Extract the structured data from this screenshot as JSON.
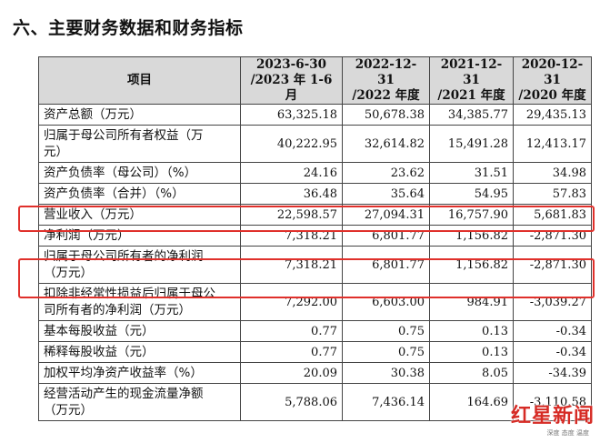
{
  "section_title": "六、主要财务数据和财务指标",
  "table": {
    "headers": [
      [
        "项目"
      ],
      [
        "2023-6-30",
        "/2023 年 1-6 月"
      ],
      [
        "2022-12-31",
        "/2022 年度"
      ],
      [
        "2021-12-31",
        "/2021 年度"
      ],
      [
        "2020-12-31",
        "/2020 年度"
      ]
    ],
    "rows": [
      {
        "label": [
          "资产总额（万元）"
        ],
        "values": [
          "63,325.18",
          "50,678.38",
          "34,385.77",
          "29,435.13"
        ]
      },
      {
        "label": [
          "归属于母公司所有者权益（万",
          "元）"
        ],
        "values": [
          "40,222.95",
          "32,614.82",
          "15,491.28",
          "12,413.17"
        ]
      },
      {
        "label": [
          "资产负债率（母公司）（%）"
        ],
        "values": [
          "24.16",
          "23.62",
          "31.51",
          "34.98"
        ]
      },
      {
        "label": [
          "资产负债率（合并）（%）"
        ],
        "values": [
          "36.48",
          "35.64",
          "54.95",
          "57.83"
        ]
      },
      {
        "label": [
          "营业收入（万元）"
        ],
        "values": [
          "22,598.57",
          "27,094.31",
          "16,757.90",
          "5,681.83"
        ],
        "highlighted": true
      },
      {
        "label": [
          "净利润（万元）"
        ],
        "values": [
          "7,318.21",
          "6,801.77",
          "1,156.82",
          "-2,871.30"
        ]
      },
      {
        "label": [
          "归属于母公司所有者的净利润",
          "（万元）"
        ],
        "values": [
          "7,318.21",
          "6,801.77",
          "1,156.82",
          "-2,871.30"
        ],
        "highlighted": true
      },
      {
        "label": [
          "扣除非经常性损益后归属于母公",
          "司所有者的净利润（万元）"
        ],
        "values": [
          "7,292.00",
          "6,603.00",
          "984.91",
          "-3,039.27"
        ]
      },
      {
        "label": [
          "基本每股收益（元）"
        ],
        "values": [
          "0.77",
          "0.75",
          "0.13",
          "-0.34"
        ]
      },
      {
        "label": [
          "稀释每股收益（元）"
        ],
        "values": [
          "0.77",
          "0.75",
          "0.13",
          "-0.34"
        ]
      },
      {
        "label": [
          "加权平均净资产收益率（%）"
        ],
        "values": [
          "20.09",
          "30.38",
          "8.05",
          "-34.39"
        ]
      },
      {
        "label": [
          "经营活动产生的现金流量净额",
          "（万元）"
        ],
        "values": [
          "5,788.06",
          "7,436.14",
          "164.69",
          "-3,110.58"
        ]
      }
    ]
  },
  "highlight_color": "#e0302b",
  "header_bg": "#d9d9d9",
  "watermark": {
    "main": "红星新闻",
    "sub": "深度 态度 温度"
  }
}
